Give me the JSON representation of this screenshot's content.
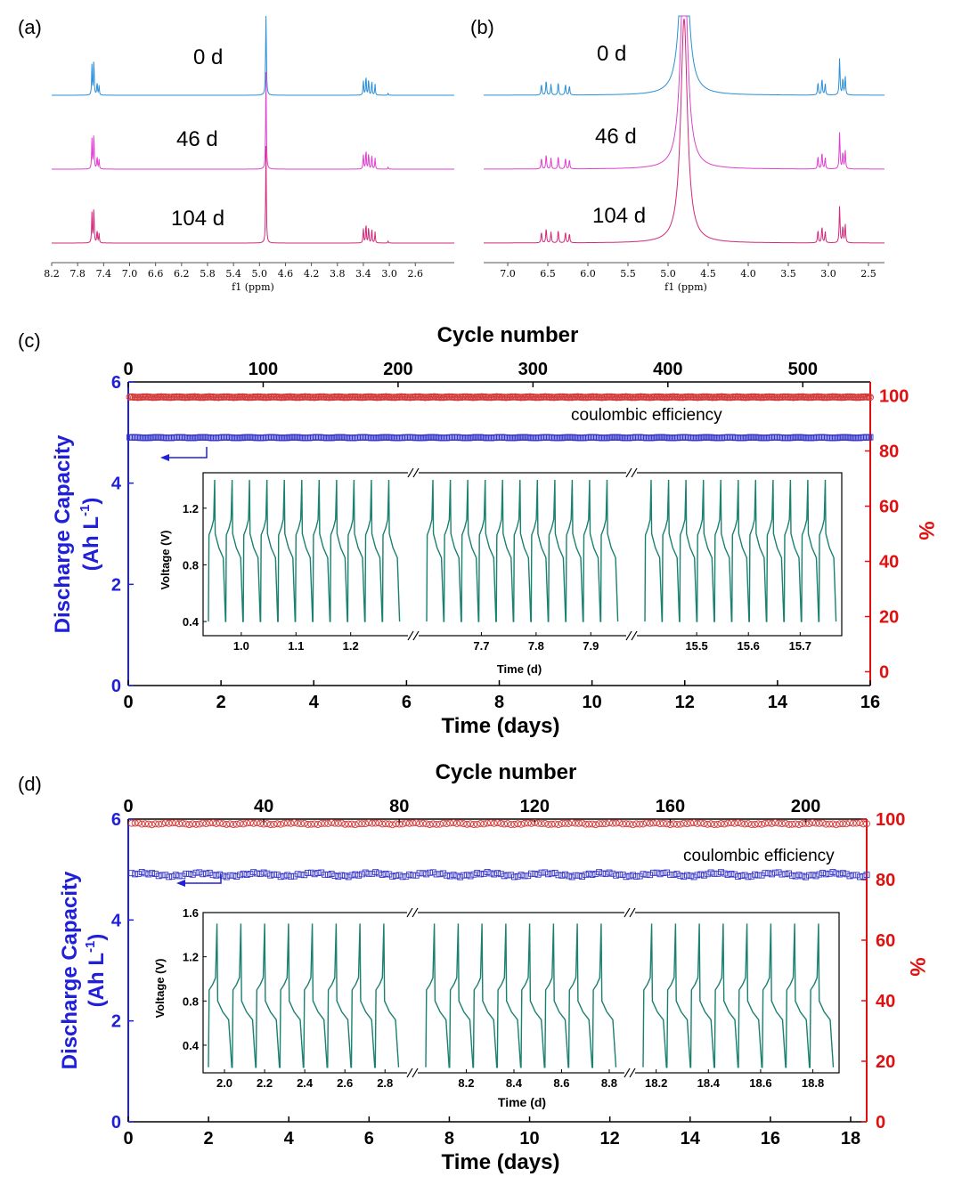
{
  "chart_data": [
    {
      "panel": "a",
      "type": "line",
      "panel_label": "(a)",
      "xlabel": "f1 (ppm)",
      "x_reversed": true,
      "xlim": [
        8.2,
        2.0
      ],
      "xticks": [
        "8.2",
        "7.8",
        "7.4",
        "7.0",
        "6.6",
        "6.2",
        "5.8",
        "5.4",
        "5.0",
        "4.6",
        "4.2",
        "3.8",
        "3.4",
        "3.0",
        "2.6"
      ],
      "series": [
        {
          "name": "0 d",
          "color": "#2b8fd6"
        },
        {
          "name": "46 d",
          "color": "#e040d0"
        },
        {
          "name": "104 d",
          "color": "#d02a7a"
        }
      ],
      "peaks": [
        {
          "ppm": 7.58,
          "h": 0.8
        },
        {
          "ppm": 7.55,
          "h": 1.0
        },
        {
          "ppm": 7.5,
          "h": 0.35
        },
        {
          "ppm": 7.47,
          "h": 0.25
        },
        {
          "ppm": 4.9,
          "h": 2.6
        },
        {
          "ppm": 3.4,
          "h": 0.4
        },
        {
          "ppm": 3.36,
          "h": 0.55
        },
        {
          "ppm": 3.32,
          "h": 0.45
        },
        {
          "ppm": 3.27,
          "h": 0.4
        },
        {
          "ppm": 3.22,
          "h": 0.3
        },
        {
          "ppm": 3.02,
          "h": 0.05
        }
      ]
    },
    {
      "panel": "b",
      "type": "line",
      "panel_label": "(b)",
      "xlabel": "f1 (ppm)",
      "x_reversed": true,
      "xlim": [
        7.3,
        2.3
      ],
      "xticks": [
        "7.0",
        "6.5",
        "6.0",
        "5.5",
        "5.0",
        "4.5",
        "4.0",
        "3.5",
        "3.0",
        "2.5"
      ],
      "series": [
        {
          "name": "0 d",
          "color": "#2b8fd6"
        },
        {
          "name": "46 d",
          "color": "#e040d0"
        },
        {
          "name": "104 d",
          "color": "#d02a7a"
        }
      ],
      "peaks": [
        {
          "ppm": 6.58,
          "h": 0.3
        },
        {
          "ppm": 6.52,
          "h": 0.4
        },
        {
          "ppm": 6.46,
          "h": 0.3
        },
        {
          "ppm": 6.37,
          "h": 0.35
        },
        {
          "ppm": 6.28,
          "h": 0.3
        },
        {
          "ppm": 6.23,
          "h": 0.25
        },
        {
          "ppm": 3.13,
          "h": 0.35
        },
        {
          "ppm": 3.08,
          "h": 0.45
        },
        {
          "ppm": 3.04,
          "h": 0.3
        },
        {
          "ppm": 2.86,
          "h": 1.0
        },
        {
          "ppm": 2.82,
          "h": 0.45
        },
        {
          "ppm": 2.79,
          "h": 0.5
        }
      ],
      "solvent_peak_ppm": 4.8
    },
    {
      "panel": "c",
      "type": "scatter",
      "panel_label": "(c)",
      "xlabel": "Time (days)",
      "ylabel_line1": "Discharge Capacity",
      "ylabel_line2_pre": "(Ah L",
      "ylabel_line2_sup": "-1",
      "ylabel_line2_post": ")",
      "y2label": "%",
      "x2label": "Cycle number",
      "xlim": [
        0,
        16
      ],
      "xticks": [
        "0",
        "2",
        "4",
        "6",
        "8",
        "10",
        "12",
        "14",
        "16"
      ],
      "ylim": [
        0,
        6
      ],
      "yticks": [
        "0",
        "2",
        "4",
        "6"
      ],
      "y2lim": [
        -5,
        105
      ],
      "y2ticks": [
        "0",
        "20",
        "40",
        "60",
        "80",
        "100"
      ],
      "x2lim": [
        0,
        550
      ],
      "x2ticks": [
        "0",
        "100",
        "200",
        "300",
        "400",
        "500"
      ],
      "cycles": 550,
      "series": [
        {
          "name": "Discharge capacity",
          "axis": "left",
          "value": 4.9,
          "noise": 0.01,
          "marker": "square",
          "color": "#3434c8"
        },
        {
          "name": "coulombic efficiency",
          "axis": "right",
          "value": 99.5,
          "noise": 0.15,
          "marker": "circle",
          "color": "#d23c3c"
        }
      ],
      "annotation": "coulombic efficiency",
      "inset": {
        "xlabel": "Time (d)",
        "ylabel": "Voltage (V)",
        "ylim": [
          0.3,
          1.45
        ],
        "yticks": [
          "0.4",
          "0.8",
          "1.2"
        ],
        "line_color": "#1a8070",
        "segments": [
          {
            "xlim": [
              0.94,
              1.29
            ],
            "xticks": [
              "1.0",
              "1.1",
              "1.2"
            ],
            "cycles": 11
          },
          {
            "xlim": [
              7.6,
              7.95
            ],
            "xticks": [
              "7.7",
              "7.8",
              "7.9"
            ],
            "cycles": 11
          },
          {
            "xlim": [
              15.4,
              15.77
            ],
            "xticks": [
              "15.5",
              "15.6",
              "15.7"
            ],
            "cycles": 11
          }
        ],
        "vmax": 1.4,
        "vmin": 0.4,
        "plateau_charge": 1.06,
        "plateau_discharge": 0.92
      }
    },
    {
      "panel": "d",
      "type": "scatter",
      "panel_label": "(d)",
      "xlabel": "Time (days)",
      "ylabel_line1": "Discharge Capacity",
      "ylabel_line2_pre": "(Ah L",
      "ylabel_line2_sup": "-1",
      "ylabel_line2_post": ")",
      "y2label": "%",
      "x2label": "Cycle number",
      "xlim": [
        0,
        18.4
      ],
      "xticks": [
        "0",
        "2",
        "4",
        "6",
        "8",
        "10",
        "12",
        "14",
        "16",
        "18"
      ],
      "ylim": [
        0,
        6
      ],
      "yticks": [
        "0",
        "2",
        "4",
        "6"
      ],
      "y2lim": [
        0,
        100
      ],
      "y2ticks": [
        "0",
        "20",
        "40",
        "60",
        "80",
        "100"
      ],
      "x2lim": [
        0,
        218
      ],
      "x2ticks": [
        "0",
        "40",
        "80",
        "120",
        "160",
        "200"
      ],
      "cycles": 218,
      "series": [
        {
          "name": "Discharge capacity",
          "axis": "left",
          "value": 4.9,
          "noise": 0.05,
          "marker": "square",
          "color": "#3434c8"
        },
        {
          "name": "coulombic efficiency",
          "axis": "right",
          "value": 98.5,
          "noise": 0.35,
          "marker": "circle",
          "color": "#d23c3c"
        }
      ],
      "annotation": "coulombic efficiency",
      "inset": {
        "xlabel": "Time (d)",
        "ylabel": "Voltage (V)",
        "ylim": [
          0.15,
          1.6
        ],
        "yticks": [
          "0.4",
          "0.8",
          "1.2",
          "1.6"
        ],
        "line_color": "#1a8070",
        "segments": [
          {
            "xlim": [
              1.92,
              2.87
            ],
            "xticks": [
              "2.0",
              "2.2",
              "2.4",
              "2.6",
              "2.8"
            ],
            "cycles": 8
          },
          {
            "xlim": [
              8.03,
              8.83
            ],
            "xticks": [
              "8.2",
              "8.4",
              "8.6",
              "8.8"
            ],
            "cycles": 8
          },
          {
            "xlim": [
              18.15,
              18.88
            ],
            "xticks": [
              "18.2",
              "18.4",
              "18.6",
              "18.8"
            ],
            "cycles": 8
          }
        ],
        "vmax": 1.5,
        "vmin": 0.2,
        "plateau_charge": 0.95,
        "plateau_discharge": 0.7
      }
    }
  ]
}
